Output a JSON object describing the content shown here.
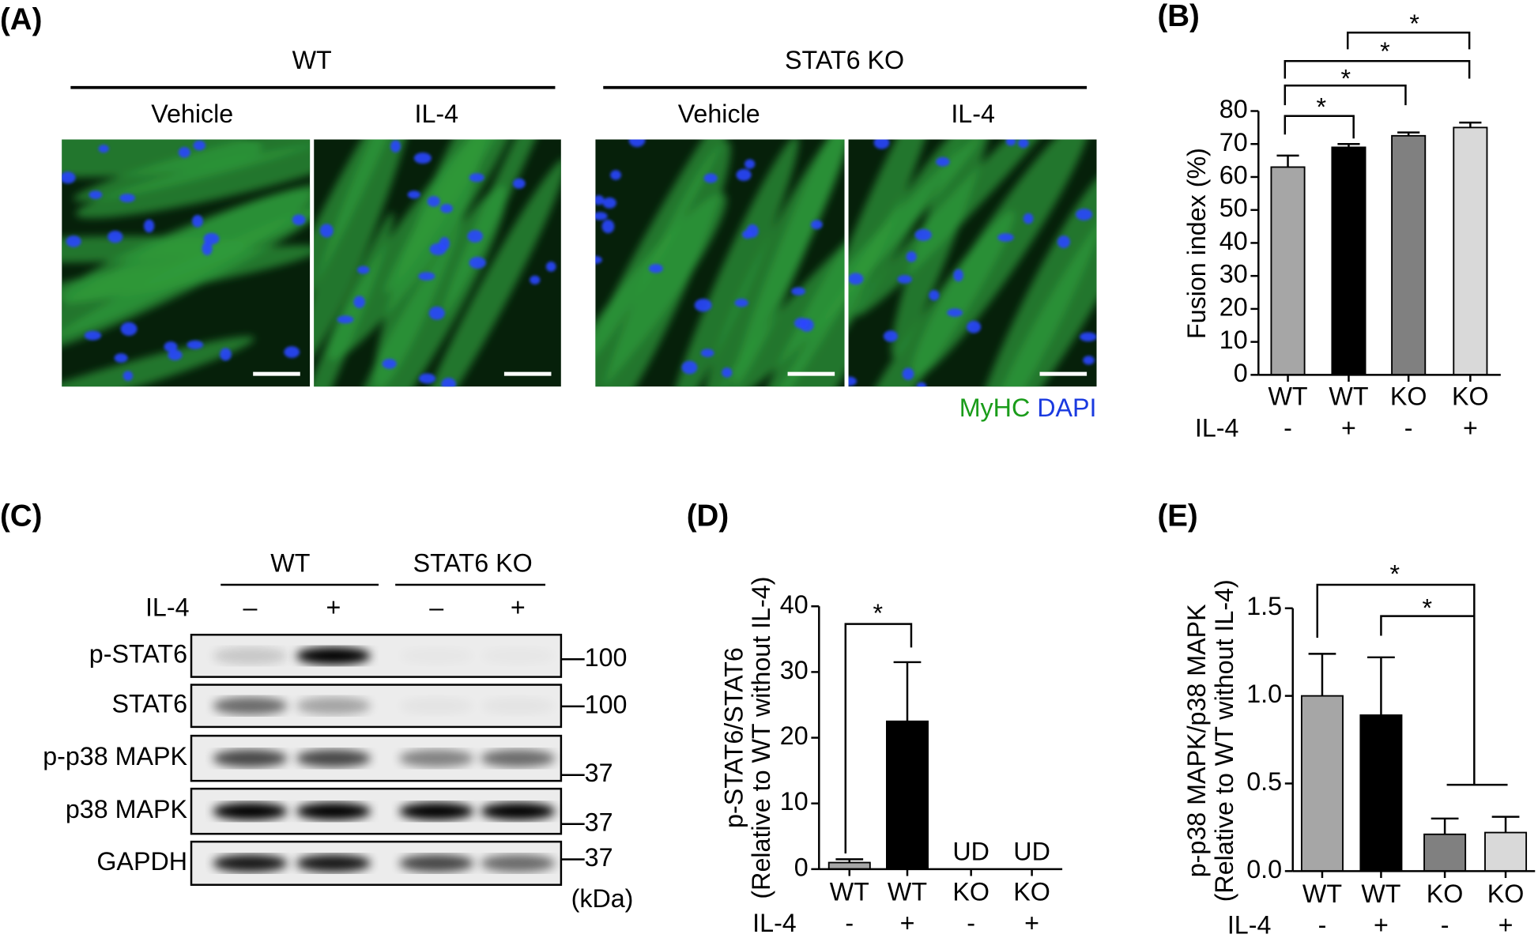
{
  "panel_a": {
    "label": "(A)",
    "groups": [
      {
        "name": "WT",
        "conditions": [
          "Vehicle",
          "IL-4"
        ]
      },
      {
        "name": "STAT6 KO",
        "conditions": [
          "Vehicle",
          "IL-4"
        ]
      }
    ],
    "stain": [
      "MyHC",
      "DAPI"
    ]
  },
  "panel_c": {
    "label": "(C)",
    "groups": [
      "WT",
      "STAT6 KO"
    ],
    "treatment_label": "IL-4",
    "treatments": [
      "–",
      "+",
      "–",
      "+"
    ],
    "rows": [
      {
        "name": "p-STAT6",
        "marker": "100"
      },
      {
        "name": "STAT6",
        "marker": "100"
      },
      {
        "name": "p-p38 MAPK",
        "marker": "37"
      },
      {
        "name": "p38 MAPK",
        "marker": "37"
      },
      {
        "name": "GAPDH",
        "marker": "37"
      }
    ],
    "unit": "(kDa)"
  },
  "chart_data": [
    {
      "panel": "(B)",
      "type": "bar",
      "categories": [
        "WT",
        "WT",
        "KO",
        "KO"
      ],
      "group_label": "IL-4",
      "groups": [
        "-",
        "+",
        "-",
        "+"
      ],
      "values": [
        63,
        69,
        72.5,
        75
      ],
      "errors": [
        3.5,
        1,
        1,
        1.5
      ],
      "colors": [
        "#a6a6a6",
        "#000000",
        "#808080",
        "#d9d9d9"
      ],
      "ylabel": "Fusion index (%)",
      "ylim": [
        0,
        80
      ],
      "yticks": [
        0,
        10,
        20,
        30,
        40,
        50,
        60,
        70,
        80
      ],
      "annotations": [
        "*",
        "*",
        "*",
        "*"
      ]
    },
    {
      "panel": "(D)",
      "type": "bar",
      "categories": [
        "WT",
        "WT",
        "KO",
        "KO"
      ],
      "group_label": "IL-4",
      "groups": [
        "-",
        "+",
        "-",
        "+"
      ],
      "values": [
        1,
        22.5,
        null,
        null
      ],
      "value_labels": [
        null,
        null,
        "UD",
        "UD"
      ],
      "errors": [
        0.5,
        9,
        null,
        null
      ],
      "colors": [
        "#a6a6a6",
        "#000000",
        "#808080",
        "#d9d9d9"
      ],
      "ylabel": [
        "p-STAT6/STAT6",
        "(Relative to WT without IL-4)"
      ],
      "ylim": [
        0,
        40
      ],
      "yticks": [
        0,
        10,
        20,
        30,
        40
      ],
      "annotations": [
        "*"
      ]
    },
    {
      "panel": "(E)",
      "type": "bar",
      "categories": [
        "WT",
        "WT",
        "KO",
        "KO"
      ],
      "group_label": "IL-4",
      "groups": [
        "-",
        "+",
        "-",
        "+"
      ],
      "values": [
        1.0,
        0.89,
        0.21,
        0.22
      ],
      "errors": [
        0.24,
        0.33,
        0.09,
        0.09
      ],
      "colors": [
        "#a6a6a6",
        "#000000",
        "#808080",
        "#d9d9d9"
      ],
      "ylabel": [
        "p-p38 MAPK/p38 MAPK",
        "(Relative to WT without IL-4)"
      ],
      "ylim": [
        0,
        1.5
      ],
      "yticks": [
        {
          "value": 0,
          "label": "0.0"
        },
        0.5,
        {
          "value": 1,
          "label": "1.0"
        },
        1.5
      ],
      "annotations": [
        "*",
        "*"
      ]
    }
  ]
}
